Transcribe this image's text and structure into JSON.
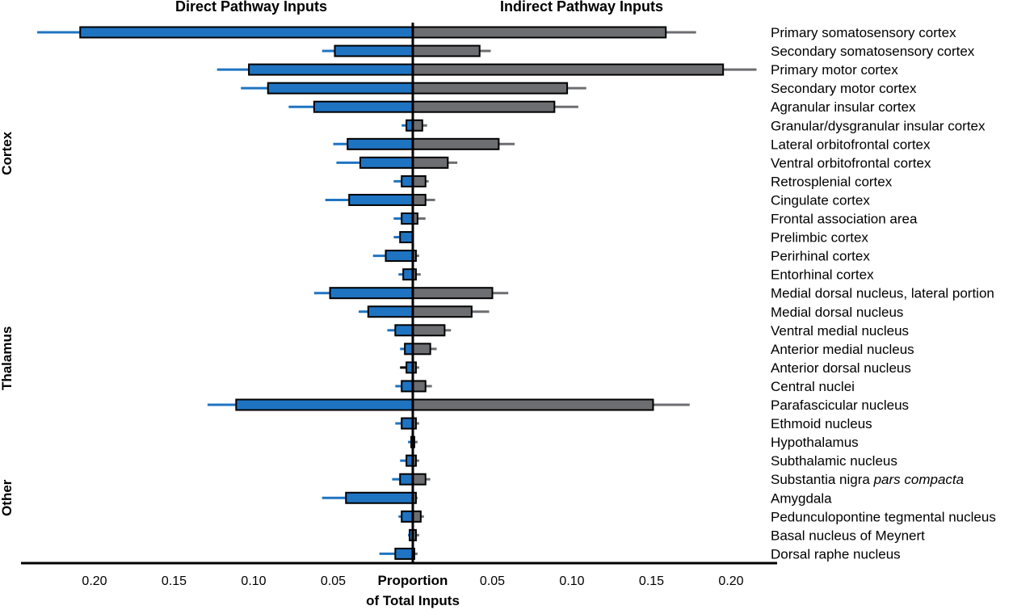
{
  "chart_data": {
    "type": "bar",
    "orientation": "horizontal-diverging",
    "title_left": "Direct Pathway Inputs",
    "title_right": "Indirect Pathway Inputs",
    "xlabel_line1": "Proportion",
    "xlabel_line2": "of Total Inputs",
    "xlim": [
      0.25,
      0.23
    ],
    "tick_labels_left": [
      "0.20",
      "0.15",
      "0.10",
      "0.05"
    ],
    "tick_values_left": [
      0.2,
      0.15,
      0.1,
      0.05
    ],
    "tick_labels_right": [
      "0.05",
      "0.10",
      "0.15",
      "0.20"
    ],
    "tick_values_right": [
      0.05,
      0.1,
      0.15,
      0.2
    ],
    "grid": false,
    "colors": {
      "direct": "#1f74c2",
      "indirect": "#6d6e71",
      "outline": "#000000"
    },
    "groups": [
      {
        "name": "Cortex",
        "first": 0,
        "last": 13
      },
      {
        "name": "Thalamus",
        "first": 14,
        "last": 21
      },
      {
        "name": "Other",
        "first": 22,
        "last": 28
      }
    ],
    "categories": [
      "Primary somatosensory cortex",
      "Secondary somatosensory cortex",
      "Primary motor cortex",
      "Secondary motor cortex",
      "Agranular insular cortex",
      "Granular/dysgranular insular cortex",
      "Lateral orbitofrontal cortex",
      "Ventral orbitofrontal cortex",
      "Retrosplenial cortex",
      "Cingulate cortex",
      "Frontal association area",
      "Prelimbic cortex",
      "Perirhinal cortex",
      "Entorhinal cortex",
      "Medial dorsal nucleus, lateral portion",
      "Medial dorsal nucleus",
      "Ventral medial nucleus",
      "Anterior medial nucleus",
      "Anterior dorsal nucleus",
      "Central nuclei",
      "Parafascicular nucleus",
      "Ethmoid nucleus",
      "Hypothalamus",
      "Subthalamic nucleus",
      "Substantia nigra pars compacta",
      "Amygdala",
      "Pedunculopontine tegmental nucleus",
      "Basal nucleus of Meynert",
      "Dorsal raphe nucleus"
    ],
    "italic_suffix": {
      "24": "pars compacta"
    },
    "series": [
      {
        "name": "Direct Pathway Inputs",
        "values": [
          0.209,
          0.049,
          0.103,
          0.091,
          0.062,
          0.004,
          0.041,
          0.033,
          0.007,
          0.04,
          0.007,
          0.008,
          0.017,
          0.006,
          0.052,
          0.028,
          0.011,
          0.005,
          0.004,
          0.007,
          0.111,
          0.007,
          0.001,
          0.004,
          0.008,
          0.042,
          0.007,
          0.002,
          0.011
        ],
        "errors": [
          0.027,
          0.008,
          0.02,
          0.017,
          0.016,
          0.003,
          0.009,
          0.015,
          0.005,
          0.015,
          0.005,
          0.004,
          0.008,
          0.003,
          0.01,
          0.006,
          0.005,
          0.003,
          0.004,
          0.004,
          0.018,
          0.004,
          0.002,
          0.004,
          0.005,
          0.015,
          0.002,
          0.001,
          0.01
        ]
      },
      {
        "name": "Indirect Pathway Inputs",
        "values": [
          0.159,
          0.042,
          0.195,
          0.097,
          0.089,
          0.006,
          0.054,
          0.022,
          0.008,
          0.008,
          0.003,
          0.0,
          0.002,
          0.002,
          0.05,
          0.037,
          0.02,
          0.011,
          0.002,
          0.008,
          0.151,
          0.002,
          0.001,
          0.002,
          0.008,
          0.002,
          0.005,
          0.002,
          0.001
        ],
        "errors": [
          0.019,
          0.007,
          0.021,
          0.012,
          0.015,
          0.003,
          0.01,
          0.006,
          0.002,
          0.006,
          0.005,
          0.0,
          0.002,
          0.003,
          0.01,
          0.011,
          0.004,
          0.004,
          0.002,
          0.004,
          0.023,
          0.002,
          0.002,
          0.002,
          0.003,
          0.001,
          0.002,
          0.002,
          0.002
        ]
      }
    ]
  }
}
